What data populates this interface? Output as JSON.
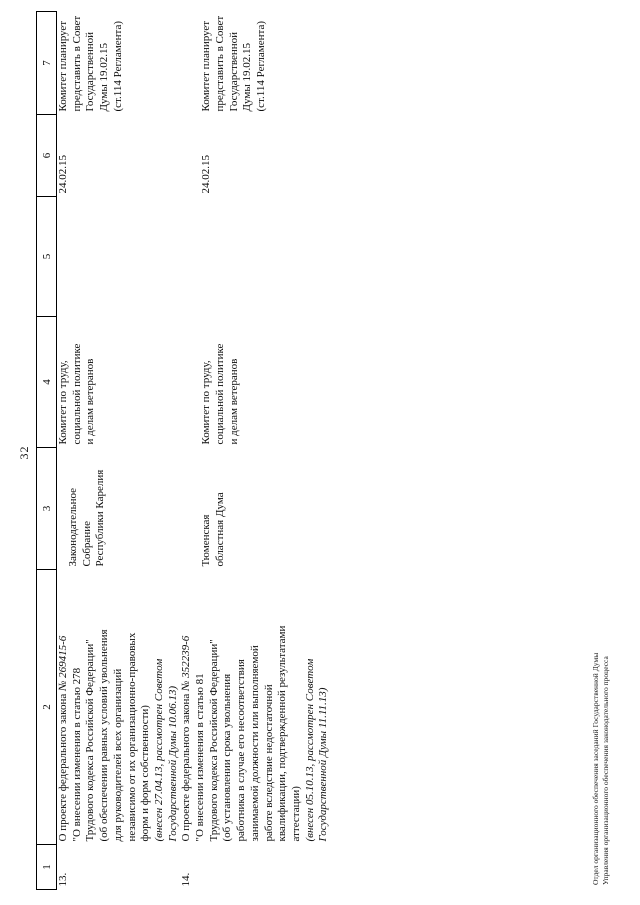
{
  "page": {
    "number": "32",
    "footer_lines": [
      "Отдел организационного обеспечения заседаний Государственной Думы",
      "Управления организационного обеспечения законодательного процесса"
    ]
  },
  "table": {
    "header": [
      "1",
      "2",
      "3",
      "4",
      "5",
      "6",
      "7"
    ],
    "rows": [
      {
        "num": "13.",
        "project": [
          [
            {
              "t": "О проекте федерального закона ",
              "i": 0
            },
            {
              "t": "№ 269415-6",
              "i": 1
            }
          ],
          [
            {
              "t": "\"О внесении изменения в статью 278",
              "i": 0
            }
          ],
          [
            {
              "t": "Трудового кодекса Российской Федерации\"",
              "i": 0
            }
          ],
          [
            {
              "t": "(об обеспечении равных условий увольнения",
              "i": 0
            }
          ],
          [
            {
              "t": "для руководителей всех организаций",
              "i": 0
            }
          ],
          [
            {
              "t": "независимо от их организационно-правовых",
              "i": 0
            }
          ],
          [
            {
              "t": "форм и форм собственности)",
              "i": 0
            }
          ],
          [
            {
              "t": "(внесен 27.04.13, рассмотрен Советом",
              "i": 1
            }
          ],
          [
            {
              "t": "Государственной Думы 10.06.13)",
              "i": 1
            }
          ]
        ],
        "initiator": [
          "Законодательное",
          "Собрание",
          "Республики Карелия"
        ],
        "committee": [
          "Комитет по труду,",
          "социальной политике",
          "и делам ветеранов"
        ],
        "col5": [],
        "date": "24.02.15",
        "plan": [
          "Комитет планирует",
          "представить в Совет",
          "Государственной",
          "Думы 19.02.15",
          "(ст.114 Регламента)"
        ]
      },
      {
        "num": "14.",
        "project": [
          [
            {
              "t": "О проекте федерального закона ",
              "i": 0
            },
            {
              "t": "№ 352239-6",
              "i": 1
            }
          ],
          [
            {
              "t": "\"О внесении изменения в статью 81",
              "i": 0
            }
          ],
          [
            {
              "t": "Трудового кодекса Российской Федерации\"",
              "i": 0
            }
          ],
          [
            {
              "t": "(об установлении срока увольнения",
              "i": 0
            }
          ],
          [
            {
              "t": "работника в случае его несоответствия",
              "i": 0
            }
          ],
          [
            {
              "t": "занимаемой должности или выполняемой",
              "i": 0
            }
          ],
          [
            {
              "t": "работе вследствие недостаточной",
              "i": 0
            }
          ],
          [
            {
              "t": "квалификации, подтвержденной результатами",
              "i": 0
            }
          ],
          [
            {
              "t": "аттестации)",
              "i": 0
            }
          ],
          [
            {
              "t": "(внесен 05.10.13, рассмотрен Советом",
              "i": 1
            }
          ],
          [
            {
              "t": "Государственной Думы 11.11.13)",
              "i": 1
            }
          ]
        ],
        "initiator": [
          "Тюменская",
          "областная Дума"
        ],
        "committee": [
          "Комитет по труду,",
          "социальной политике",
          "и делам ветеранов"
        ],
        "col5": [],
        "date": "24.02.15",
        "plan": [
          "Комитет планирует",
          "представить в Совет",
          "Государственной",
          "Думы 19.02.15",
          "(ст.114 Регламента)"
        ]
      }
    ]
  }
}
